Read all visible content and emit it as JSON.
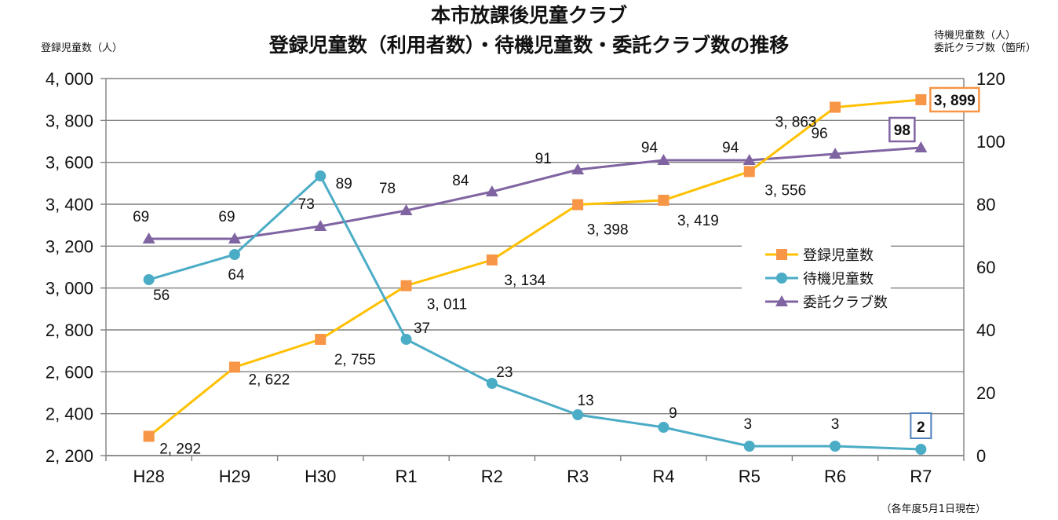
{
  "header": {
    "title_line1": "本市放課後児童クラブ",
    "title_line2": "登録児童数（利用者数）・待機児童数・委託クラブ数の推移",
    "left_axis_label": "登録児童数（人）",
    "right_axis_label_line1": "待機児童数（人）",
    "right_axis_label_line2": "委託クラブ数（箇所）",
    "footnote": "（各年度5月1日現在）"
  },
  "colors": {
    "registered": "#FFC000",
    "registered_marker": "#F79646",
    "waiting": "#4BACC6",
    "clubs": "#8064A2",
    "grid": "#808080",
    "highlight_registered": "#F79646",
    "highlight_clubs": "#8064A2",
    "highlight_waiting": "#4F81BD"
  },
  "chart_data": {
    "type": "line",
    "categories": [
      "H28",
      "H29",
      "H30",
      "R1",
      "R2",
      "R3",
      "R4",
      "R5",
      "R6",
      "R7"
    ],
    "left_axis": {
      "min": 2200,
      "max": 4000,
      "step": 200,
      "ticks": [
        "2, 200",
        "2, 400",
        "2, 600",
        "2, 800",
        "3, 000",
        "3, 200",
        "3, 400",
        "3, 600",
        "3, 800",
        "4, 000"
      ]
    },
    "right_axis": {
      "min": 0,
      "max": 120,
      "step": 20,
      "ticks": [
        "0",
        "20",
        "40",
        "60",
        "80",
        "100",
        "120"
      ]
    },
    "series": [
      {
        "name": "登録児童数",
        "axis": "left",
        "marker": "square",
        "values": [
          2292,
          2622,
          2755,
          3011,
          3134,
          3398,
          3419,
          3556,
          3863,
          3899
        ],
        "labels": [
          "2, 292",
          "2, 622",
          "2, 755",
          "3, 011",
          "3, 134",
          "3, 398",
          "3, 419",
          "3, 556",
          "3, 863",
          "3, 899"
        ]
      },
      {
        "name": "待機児童数",
        "axis": "right",
        "marker": "circle",
        "values": [
          56,
          64,
          89,
          37,
          23,
          13,
          9,
          3,
          3,
          2
        ],
        "labels": [
          "56",
          "64",
          "89",
          "37",
          "23",
          "13",
          "9",
          "3",
          "3",
          "2"
        ]
      },
      {
        "name": "委託クラブ数",
        "axis": "right",
        "marker": "triangle",
        "values": [
          69,
          69,
          73,
          78,
          84,
          91,
          94,
          94,
          96,
          98
        ],
        "labels": [
          "69",
          "69",
          "73",
          "78",
          "84",
          "91",
          "94",
          "94",
          "96",
          "98"
        ]
      }
    ],
    "legend": {
      "position": "right-center",
      "entries": [
        "登録児童数",
        "待機児童数",
        "委託クラブ数"
      ]
    },
    "grid": true
  }
}
